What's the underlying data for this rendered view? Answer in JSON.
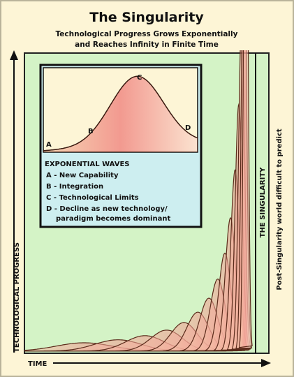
{
  "header": {
    "title": "The Singularity",
    "subtitle_lines": [
      "Technological Progress Grows Exponentially",
      "and Reaches Infinity in Finite Time"
    ]
  },
  "inset": {
    "wave_labels": [
      "A",
      "B",
      "C",
      "D"
    ],
    "legend_title": "EXPONENTIAL WAVES",
    "legend_lines": [
      "A - New Capability",
      "B - Integration",
      "C - Technological Limits",
      "D - Decline as new technology/",
      "paradigm becomes dominant"
    ]
  },
  "axes": {
    "y_label": "TECHNOLOGICAL PROGRESS",
    "x_label": "TIME",
    "singularity_label": "THE SINGULARITY",
    "side_note": "Post-Singularity world difficult to predict"
  }
}
